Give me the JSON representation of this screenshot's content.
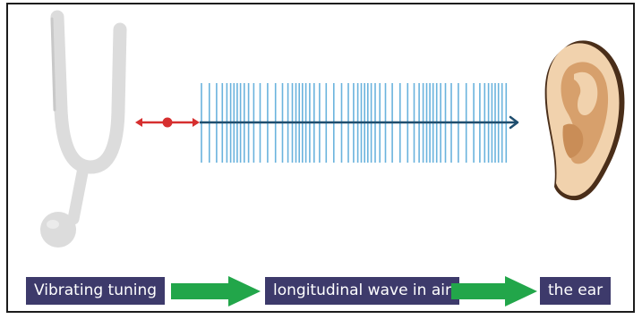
{
  "colors": {
    "label_bg": "#3d3a6b",
    "label_text": "#ffffff",
    "flow_arrow": "#22a64a",
    "wave_lines": "#6ab3dd",
    "axis_arrow": "#1f4e6e",
    "vibration_arrow": "#d62f2f",
    "fork": "#dcdcdc",
    "ear_skin": "#f1d2ad",
    "ear_shadow": "#d7a06c",
    "ear_outline": "#4a2e19"
  },
  "icons": [
    "tuning-fork-icon",
    "ear-icon"
  ],
  "labels": {
    "source": "Vibrating tuning",
    "medium": "longitudinal wave in air",
    "receiver": "the ear"
  }
}
